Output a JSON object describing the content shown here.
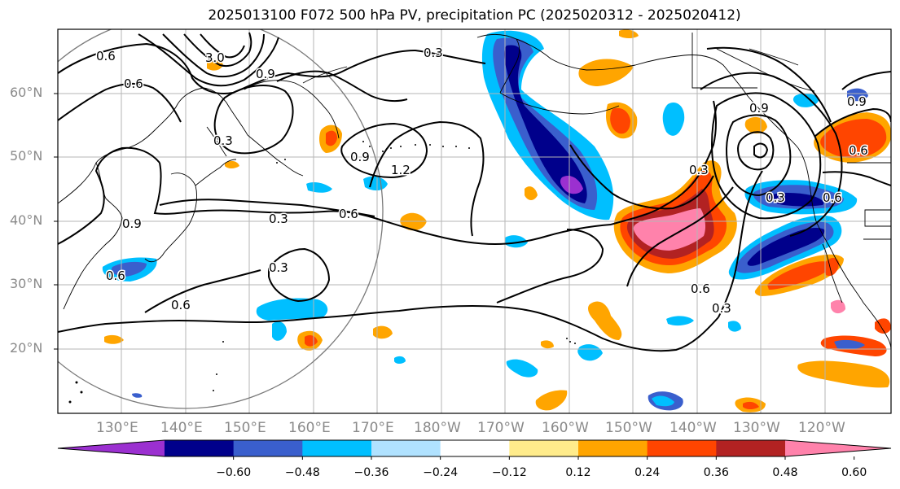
{
  "title": "2025013100 F072 500 hPa PV, precipitation PC (2025020312 - 2025020412)",
  "lat_labels": [
    "60°N",
    "50°N",
    "40°N",
    "30°N",
    "20°N"
  ],
  "lon_labels": [
    "130°E",
    "140°E",
    "150°E",
    "160°E",
    "170°E",
    "180°W",
    "170°W",
    "160°W",
    "150°W",
    "140°W",
    "130°W",
    "120°W"
  ],
  "contour_labels": [
    "0.6",
    "0.6",
    "0.3",
    "3.0",
    "0.9",
    "0.3",
    "0.9",
    "1.2",
    "0.3",
    "0.6",
    "0.3",
    "0.6",
    "0.9",
    "0.3",
    "0.6",
    "0.6",
    "0.3",
    "0.9",
    "0.6",
    "0.6",
    "0.9",
    "0.3"
  ],
  "colorbar": {
    "ticks": [
      "−0.60",
      "−0.48",
      "−0.36",
      "−0.24",
      "−0.12",
      "0.12",
      "0.24",
      "0.36",
      "0.48",
      "0.60"
    ],
    "colors": [
      "#9b30d0",
      "#00008b",
      "#3a5fcd",
      "#00bfff",
      "#b0e2ff",
      "#ffffff",
      "#ffec8b",
      "#ffa500",
      "#ff4500",
      "#b22222",
      "#ff82ab"
    ]
  }
}
